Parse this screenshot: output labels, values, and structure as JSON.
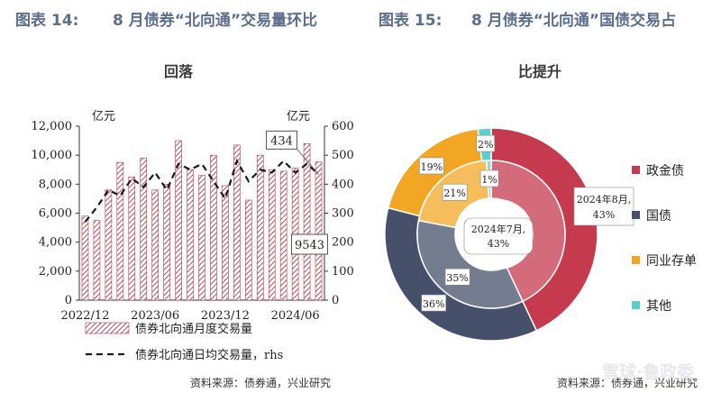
{
  "left": {
    "fig_num": "图表 14:",
    "title": "8 月债券“北向通”交易量环比",
    "subtitle": "回落",
    "source": "资料来源：债券通，兴业研究"
  },
  "right": {
    "fig_num": "图表 15:",
    "title": "8 月债券“北向通”国债交易占",
    "subtitle": "比提升",
    "source": "资料来源：债券通，兴业研究"
  },
  "watermark": "雪球·鲁政委",
  "chart_data": [
    {
      "type": "bar",
      "title": "回落",
      "ylabel": "亿元",
      "y2label": "亿元",
      "ylim": [
        0,
        12000
      ],
      "y2lim": [
        0,
        600
      ],
      "yticks": [
        "0",
        "2,000",
        "4,000",
        "6,000",
        "8,000",
        "10,000",
        "12,000"
      ],
      "y2ticks": [
        "0",
        "100",
        "200",
        "300",
        "400",
        "500",
        "600"
      ],
      "xticks": [
        "2022/12",
        "2023/06",
        "2023/12",
        "2024/06"
      ],
      "categories": [
        "2022/12",
        "2023/01",
        "2023/02",
        "2023/03",
        "2023/04",
        "2023/05",
        "2023/06",
        "2023/07",
        "2023/08",
        "2023/09",
        "2023/10",
        "2023/11",
        "2023/12",
        "2024/01",
        "2024/02",
        "2024/03",
        "2024/04",
        "2024/05",
        "2024/06",
        "2024/07",
        "2024/08"
      ],
      "series": [
        {
          "name": "债券北向通月度交易量",
          "type": "bar",
          "axis": "left",
          "values": [
            5800,
            5500,
            7600,
            9500,
            8500,
            9800,
            7600,
            8000,
            11000,
            9000,
            8600,
            10000,
            7900,
            10700,
            6900,
            10000,
            9000,
            8900,
            9100,
            10800,
            9543
          ]
        },
        {
          "name": "债券北向通日均交易量，rhs",
          "type": "line",
          "style": "dashed",
          "axis": "right",
          "values": [
            270,
            320,
            380,
            360,
            420,
            390,
            440,
            380,
            470,
            450,
            470,
            410,
            350,
            480,
            410,
            450,
            440,
            480,
            440,
            470,
            434
          ]
        }
      ],
      "annotations": [
        "434",
        "9543"
      ],
      "legend": "bottom"
    },
    {
      "type": "pie",
      "subtype": "nested-donut",
      "title": "比提升",
      "legend": "right",
      "categories": [
        "政金债",
        "国债",
        "同业存单",
        "其他"
      ],
      "colors": [
        "#c63a4e",
        "#46506b",
        "#f2a724",
        "#5bd0cb"
      ],
      "series": [
        {
          "name": "2024年8月",
          "ring": "outer",
          "values": [
            43,
            36,
            19,
            2
          ],
          "label": "2024年8月,\n43%"
        },
        {
          "name": "2024年7月",
          "ring": "inner",
          "values": [
            43,
            35,
            21,
            1
          ],
          "label": "2024年7月,\n43%"
        }
      ]
    }
  ]
}
